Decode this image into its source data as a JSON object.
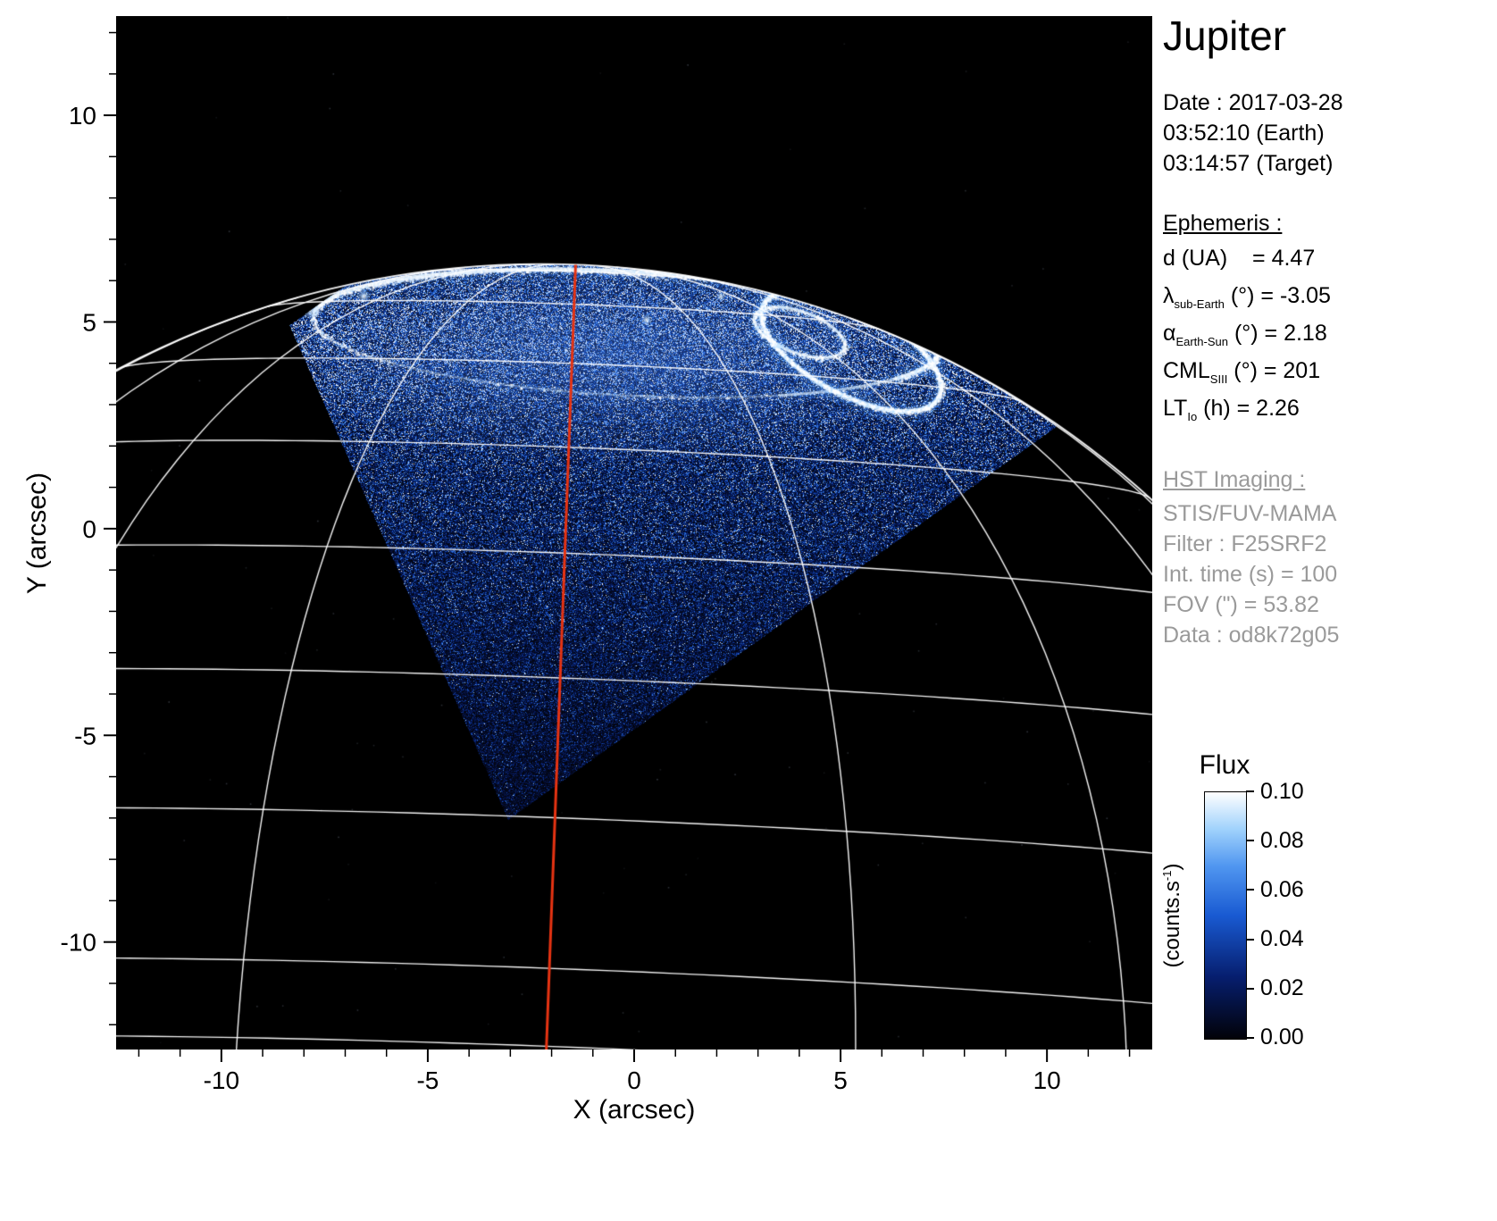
{
  "title": "Jupiter",
  "info": {
    "date_label": "Date : 2017-03-28",
    "time_earth": "03:52:10 (Earth)",
    "time_target": "03:14:57 (Target)",
    "ephemeris_heading": "Ephemeris :",
    "ephemeris": [
      {
        "pre": "d (UA)",
        "sub": "",
        "post": "    = 4.47"
      },
      {
        "pre": "λ",
        "sub": "sub-Earth",
        "post": " (°) = -3.05"
      },
      {
        "pre": "α",
        "sub": "Earth-Sun",
        "post": " (°) = 2.18"
      },
      {
        "pre": "CML",
        "sub": "SIII",
        "post": " (°) = 201"
      },
      {
        "pre": "LT",
        "sub": "Io",
        "post": " (h) = 2.26"
      }
    ],
    "hst_heading": "HST Imaging :",
    "hst_lines": [
      "STIS/FUV-MAMA",
      "Filter : F25SRF2",
      "Int. time (s) = 100",
      "FOV (\") = 53.82",
      "Data : od8k72g05"
    ]
  },
  "colorbar": {
    "title": "Flux",
    "unit_pre": "(counts.s",
    "unit_sup": "-1",
    "unit_post": ")",
    "ticks": [
      "0.10",
      "0.08",
      "0.06",
      "0.04",
      "0.02",
      "0.00"
    ],
    "values": [
      0.1,
      0.08,
      0.06,
      0.04,
      0.02,
      0.0
    ]
  },
  "chart_data": {
    "type": "heatmap",
    "title": "Jupiter",
    "xlabel": "X (arcsec)",
    "ylabel": "Y (arcsec)",
    "xlim": [
      -12.55,
      12.55
    ],
    "ylim": [
      -12.6,
      12.4
    ],
    "x_ticks": [
      -10,
      -5,
      0,
      5,
      10
    ],
    "y_ticks": [
      10,
      5,
      0,
      -5,
      -10
    ],
    "minor_tick_step": 1,
    "flux_range": [
      0.0,
      0.1
    ],
    "flux_unit": "counts.s-1",
    "description": "HST STIS/FUV-MAMA far-UV image of Jupiter's north polar aurora on 2017-03-28: blue speckled count-rate map inside the instrument field of view clipped at the planetary limb, bright auroral main oval near the pole, white planetocentric latitude/longitude graticule, red central meridian (CML 201).",
    "ephemeris_values": {
      "d_UA": 4.47,
      "lambda_sub_earth_deg": -3.05,
      "alpha_earth_sun_deg": 2.18,
      "CML_SIII_deg": 201,
      "LT_Io_h": 2.26,
      "int_time_s": 100,
      "fov_arcsec": 53.82,
      "filter": "F25SRF2",
      "instrument": "STIS/FUV-MAMA",
      "dataset": "od8k72g05"
    },
    "render": {
      "planet_center": [
        -2.24,
        -15.6
      ],
      "planet_radius": 22.0,
      "sub_earth_lat_deg": -3.05,
      "roll_deg": -2.14,
      "lat_lines_deg": [
        80,
        70,
        60,
        50,
        40,
        30,
        20,
        10,
        5
      ],
      "meridian_step_deg": 20,
      "fov_polygon": [
        [
          -8.35,
          4.92
        ],
        [
          5.2,
          14.5
        ],
        [
          10.45,
          2.62
        ],
        [
          -3.05,
          -7.05
        ]
      ],
      "grid_color": "#ffffff",
      "meridian_color": "#e63312",
      "colormap_stops": [
        [
          0.0,
          [
            2,
            2,
            8
          ]
        ],
        [
          0.25,
          [
            6,
            30,
            110
          ]
        ],
        [
          0.5,
          [
            25,
            90,
            210
          ]
        ],
        [
          0.7,
          [
            80,
            150,
            240
          ]
        ],
        [
          0.85,
          [
            160,
            210,
            252
          ]
        ],
        [
          1.0,
          [
            255,
            255,
            255
          ]
        ]
      ],
      "aurora": {
        "main_oval": {
          "cx": -0.2,
          "cy": 4.72,
          "rx": 7.6,
          "ry": 1.5,
          "rot": -3
        },
        "kidney_oval": {
          "cx": 5.25,
          "cy": 4.3,
          "rx": 2.4,
          "ry": 1.05,
          "rot": -28
        },
        "inner_oval": {
          "cx": 4.0,
          "cy": 4.75,
          "rx": 1.15,
          "ry": 0.5,
          "rot": -20
        },
        "spots": [
          [
            -7.85,
            5.3,
            5
          ],
          [
            -6.55,
            5.62,
            3.5
          ],
          [
            0.3,
            5.05,
            3
          ],
          [
            2.1,
            5.62,
            2.5
          ]
        ]
      }
    }
  }
}
